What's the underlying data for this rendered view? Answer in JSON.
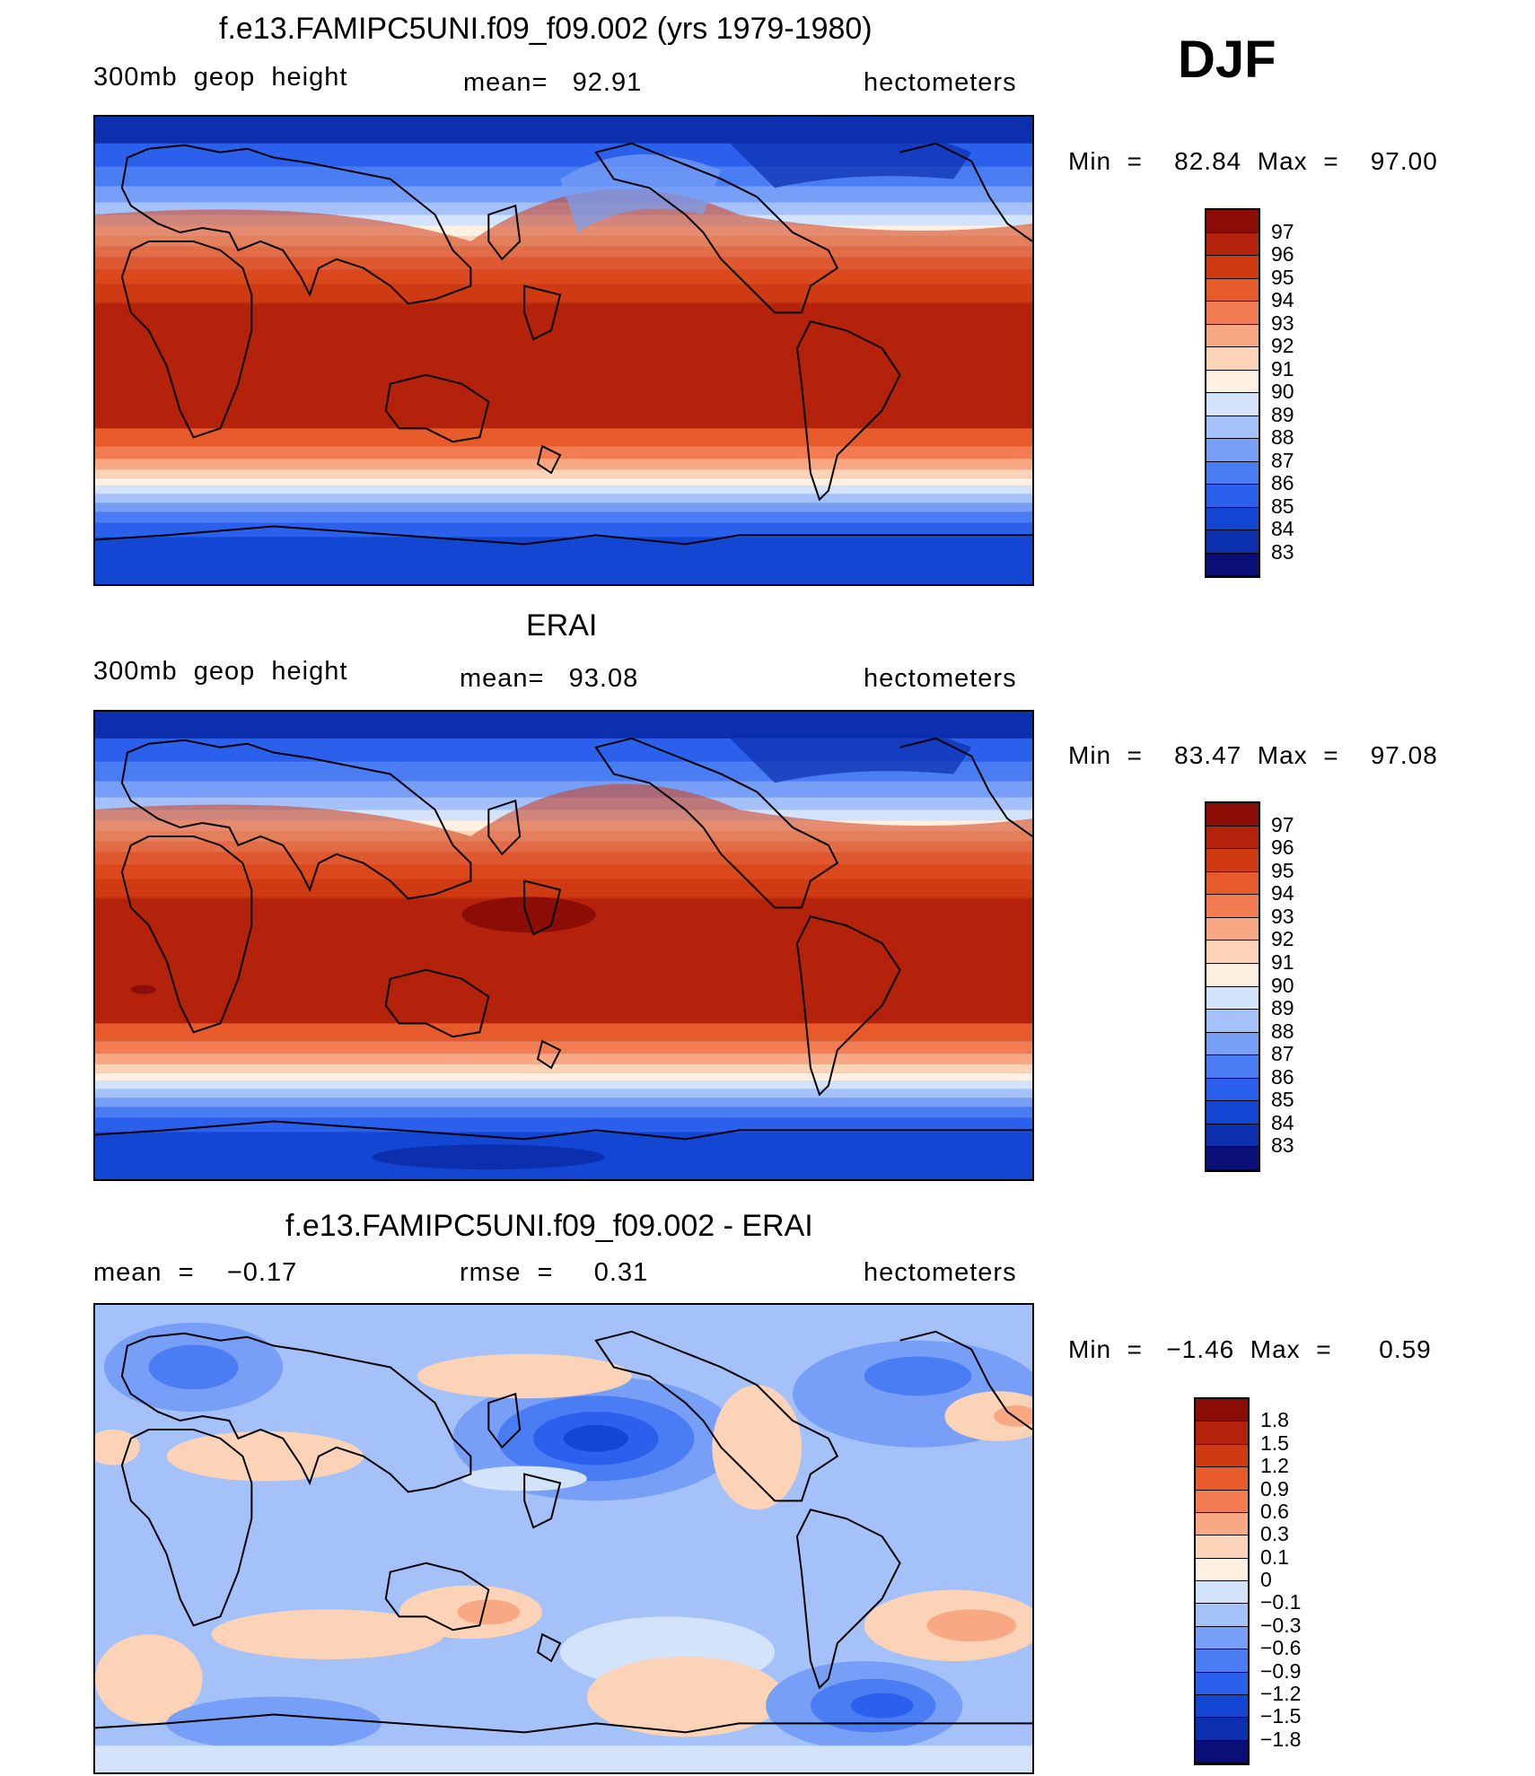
{
  "season": "DJF",
  "colors": {
    "abs_scale": [
      "#0a0f78",
      "#0c2fae",
      "#1446d4",
      "#2a60ec",
      "#4a7cf4",
      "#779ff7",
      "#a4c1fa",
      "#d3e3fc",
      "#fff0e2",
      "#fcd3b6",
      "#f9a884",
      "#f37c52",
      "#e75a29",
      "#cf3a12",
      "#b5220c",
      "#8c0c06"
    ],
    "diff_scale": [
      "#0a0f78",
      "#0c2fae",
      "#1446d4",
      "#2a60ec",
      "#4a7cf4",
      "#779ff7",
      "#a4c1fa",
      "#d3e3fc",
      "#fff0e2",
      "#fcd3b6",
      "#f9a884",
      "#f37c52",
      "#e75a29",
      "#cf3a12",
      "#b5220c",
      "#8c0c06"
    ]
  },
  "panels": [
    {
      "title": "f.e13.FAMIPC5UNI.f09_f09.002 (yrs 1979-1980)",
      "left": "300mb  geop  height",
      "center": "mean=   92.91",
      "right": "hectometers",
      "minmax": "Min  =    82.84  Max  =    97.00"
    },
    {
      "title": "ERAI",
      "left": "300mb  geop  height",
      "center": "mean=   93.08",
      "right": "hectometers",
      "minmax": "Min  =    83.47  Max  =    97.08"
    },
    {
      "title": "f.e13.FAMIPC5UNI.f09_f09.002 - ERAI",
      "left": "mean  =    −0.17",
      "center": "rmse  =     0.31",
      "right": "hectometers",
      "minmax": "Min  =   −1.46  Max  =      0.59"
    }
  ],
  "chart_data": [
    {
      "type": "heatmap",
      "title": "f.e13.FAMIPC5UNI.f09_f09.002 (yrs 1979-1980)",
      "variable": "300mb  geop  height",
      "units": "hectometers",
      "mean": 92.91,
      "min": 82.84,
      "max": 97.0,
      "colorbar_labels": [
        "97",
        "96",
        "95",
        "94",
        "93",
        "92",
        "91",
        "90",
        "89",
        "88",
        "87",
        "86",
        "85",
        "84",
        "83"
      ]
    },
    {
      "type": "heatmap",
      "title": "ERAI",
      "variable": "300mb  geop  height",
      "units": "hectometers",
      "mean": 93.08,
      "min": 83.47,
      "max": 97.08,
      "colorbar_labels": [
        "97",
        "96",
        "95",
        "94",
        "93",
        "92",
        "91",
        "90",
        "89",
        "88",
        "87",
        "86",
        "85",
        "84",
        "83"
      ]
    },
    {
      "type": "heatmap",
      "title": "f.e13.FAMIPC5UNI.f09_f09.002 - ERAI",
      "units": "hectometers",
      "mean": -0.17,
      "rmse": 0.31,
      "min": -1.46,
      "max": 0.59,
      "colorbar_labels": [
        "1.8",
        "1.5",
        "1.2",
        "0.9",
        "0.6",
        "0.3",
        "0.1",
        "0",
        "−0.1",
        "−0.3",
        "−0.6",
        "−0.9",
        "−1.2",
        "−1.5",
        "−1.8"
      ]
    }
  ]
}
